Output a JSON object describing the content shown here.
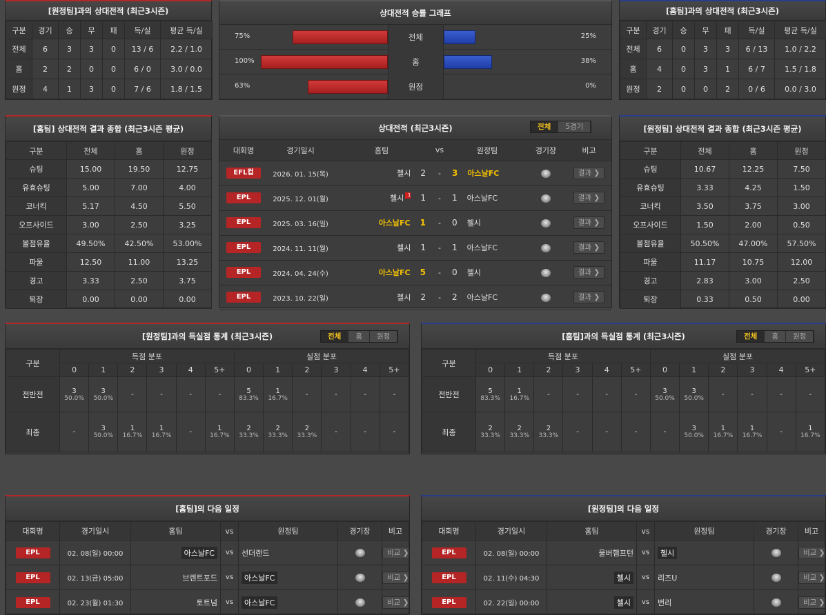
{
  "h2h_away": {
    "title": "[원정팀]과의 상대전적 (최근3시즌)",
    "headers": [
      "구분",
      "경기",
      "승",
      "무",
      "패",
      "득/실",
      "평균 득/실"
    ],
    "rows": [
      [
        "전체",
        "6",
        "3",
        "3",
        "0",
        "13 / 6",
        "2.2 / 1.0"
      ],
      [
        "홈",
        "2",
        "2",
        "0",
        "0",
        "6 / 0",
        "3.0 / 0.0"
      ],
      [
        "원정",
        "4",
        "1",
        "3",
        "0",
        "7 / 6",
        "1.8 / 1.5"
      ]
    ]
  },
  "graph": {
    "title": "상대전적 승률 그래프",
    "rows": [
      {
        "label": "전체",
        "left_pct": "75%",
        "right_pct": "25%",
        "left": 75,
        "right": 25
      },
      {
        "label": "홈",
        "left_pct": "100%",
        "right_pct": "38%",
        "left": 100,
        "right": 38
      },
      {
        "label": "원정",
        "left_pct": "63%",
        "right_pct": "0%",
        "left": 63,
        "right": 0
      }
    ]
  },
  "h2h_home": {
    "title": "[홈팀]과의 상대전적 (최근3시즌)",
    "headers": [
      "구분",
      "경기",
      "승",
      "무",
      "패",
      "득/실",
      "평균 득/실"
    ],
    "rows": [
      [
        "전체",
        "6",
        "0",
        "3",
        "3",
        "6 / 13",
        "1.0 / 2.2"
      ],
      [
        "홈",
        "4",
        "0",
        "3",
        "1",
        "6 / 7",
        "1.5 / 1.8"
      ],
      [
        "원정",
        "2",
        "0",
        "0",
        "2",
        "0 / 6",
        "0.0 / 3.0"
      ]
    ]
  },
  "summary_home": {
    "title": "[홈팀] 상대전적 결과 종합 (최근3시즌 평균)",
    "headers": [
      "구분",
      "전체",
      "홈",
      "원정"
    ],
    "rows": [
      [
        "슈팅",
        "15.00",
        "19.50",
        "12.75"
      ],
      [
        "유효슈팅",
        "5.00",
        "7.00",
        "4.00"
      ],
      [
        "코너킥",
        "5.17",
        "4.50",
        "5.50"
      ],
      [
        "오프사이드",
        "3.00",
        "2.50",
        "3.25"
      ],
      [
        "볼점유율",
        "49.50%",
        "42.50%",
        "53.00%"
      ],
      [
        "파울",
        "12.50",
        "11.00",
        "13.25"
      ],
      [
        "경고",
        "3.33",
        "2.50",
        "3.75"
      ],
      [
        "퇴장",
        "0.00",
        "0.00",
        "0.00"
      ]
    ]
  },
  "summary_away": {
    "title": "[원정팀] 상대전적 결과 종합 (최근3시즌 평균)",
    "headers": [
      "구분",
      "전체",
      "홈",
      "원정"
    ],
    "rows": [
      [
        "슈팅",
        "10.67",
        "12.25",
        "7.50"
      ],
      [
        "유효슈팅",
        "3.33",
        "4.25",
        "1.50"
      ],
      [
        "코너킥",
        "3.50",
        "3.75",
        "3.00"
      ],
      [
        "오프사이드",
        "1.50",
        "2.00",
        "0.50"
      ],
      [
        "볼점유율",
        "50.50%",
        "47.00%",
        "57.50%"
      ],
      [
        "파울",
        "11.17",
        "10.75",
        "12.00"
      ],
      [
        "경고",
        "2.83",
        "3.00",
        "2.50"
      ],
      [
        "퇴장",
        "0.33",
        "0.50",
        "0.00"
      ]
    ]
  },
  "matches": {
    "title": "상대전적 (최근3시즌)",
    "tabs": [
      "전체",
      "5경기"
    ],
    "headers": [
      "대회명",
      "경기일시",
      "홈팀",
      "vs",
      "원정팀",
      "경기장",
      "비고"
    ],
    "button": "결과 ❯",
    "rows": [
      {
        "comp": "EFL컵",
        "date": "2026. 01. 15(목)",
        "home": "첼시",
        "hs": "2",
        "as": "3",
        "away": "아스날FC",
        "hgold": false,
        "agold": true,
        "rc": ""
      },
      {
        "comp": "EPL",
        "date": "2025. 12. 01(월)",
        "home": "첼시",
        "hs": "1",
        "as": "1",
        "away": "아스날FC",
        "hgold": false,
        "agold": false,
        "rc": "1"
      },
      {
        "comp": "EPL",
        "date": "2025. 03. 16(일)",
        "home": "아스날FC",
        "hs": "1",
        "as": "0",
        "away": "첼시",
        "hgold": true,
        "agold": false,
        "rc": ""
      },
      {
        "comp": "EPL",
        "date": "2024. 11. 11(월)",
        "home": "첼시",
        "hs": "1",
        "as": "1",
        "away": "아스날FC",
        "hgold": false,
        "agold": false,
        "rc": ""
      },
      {
        "comp": "EPL",
        "date": "2024. 04. 24(수)",
        "home": "아스날FC",
        "hs": "5",
        "as": "0",
        "away": "첼시",
        "hgold": true,
        "agold": false,
        "rc": ""
      },
      {
        "comp": "EPL",
        "date": "2023. 10. 22(일)",
        "home": "첼시",
        "hs": "2",
        "as": "2",
        "away": "아스날FC",
        "hgold": false,
        "agold": false,
        "rc": ""
      }
    ]
  },
  "goals_left": {
    "title": "[원정팀]과의 득실점 통계 (최근3시즌)",
    "tabs": [
      "전체",
      "홈",
      "원정"
    ],
    "col_group": "구분",
    "scored": "득점 분포",
    "conceded": "실점 분포",
    "buckets": [
      "0",
      "1",
      "2",
      "3",
      "4",
      "5+"
    ],
    "rows": [
      {
        "label": "전반전",
        "cells": [
          [
            "3",
            "50.0%"
          ],
          [
            "3",
            "50.0%"
          ],
          [
            "-",
            ""
          ],
          [
            "-",
            ""
          ],
          [
            "-",
            ""
          ],
          [
            "-",
            ""
          ],
          [
            "5",
            "83.3%"
          ],
          [
            "1",
            "16.7%"
          ],
          [
            "-",
            ""
          ],
          [
            "-",
            ""
          ],
          [
            "-",
            ""
          ],
          [
            "-",
            ""
          ]
        ]
      },
      {
        "label": "최종",
        "cells": [
          [
            "-",
            ""
          ],
          [
            "3",
            "50.0%"
          ],
          [
            "1",
            "16.7%"
          ],
          [
            "1",
            "16.7%"
          ],
          [
            "-",
            ""
          ],
          [
            "1",
            "16.7%"
          ],
          [
            "2",
            "33.3%"
          ],
          [
            "2",
            "33.3%"
          ],
          [
            "2",
            "33.3%"
          ],
          [
            "-",
            ""
          ],
          [
            "-",
            ""
          ],
          [
            "-",
            ""
          ]
        ]
      }
    ]
  },
  "goals_right": {
    "title": "[홈팀]과의 득실점 통계 (최근3시즌)",
    "tabs": [
      "전체",
      "홈",
      "원정"
    ],
    "col_group": "구분",
    "scored": "득점 분포",
    "conceded": "실점 분포",
    "buckets": [
      "0",
      "1",
      "2",
      "3",
      "4",
      "5+"
    ],
    "rows": [
      {
        "label": "전반전",
        "cells": [
          [
            "5",
            "83.3%"
          ],
          [
            "1",
            "16.7%"
          ],
          [
            "-",
            ""
          ],
          [
            "-",
            ""
          ],
          [
            "-",
            ""
          ],
          [
            "-",
            ""
          ],
          [
            "3",
            "50.0%"
          ],
          [
            "3",
            "50.0%"
          ],
          [
            "-",
            ""
          ],
          [
            "-",
            ""
          ],
          [
            "-",
            ""
          ],
          [
            "-",
            ""
          ]
        ]
      },
      {
        "label": "최종",
        "cells": [
          [
            "2",
            "33.3%"
          ],
          [
            "2",
            "33.3%"
          ],
          [
            "2",
            "33.3%"
          ],
          [
            "-",
            ""
          ],
          [
            "-",
            ""
          ],
          [
            "-",
            ""
          ],
          [
            "-",
            ""
          ],
          [
            "3",
            "50.0%"
          ],
          [
            "1",
            "16.7%"
          ],
          [
            "1",
            "16.7%"
          ],
          [
            "-",
            ""
          ],
          [
            "1",
            "16.7%"
          ]
        ]
      }
    ]
  },
  "next_home": {
    "title": "[홈팀]의 다음 일정",
    "headers": [
      "대회명",
      "경기일시",
      "홈팀",
      "vs",
      "원정팀",
      "경기장",
      "비고"
    ],
    "button": "비교 ❯",
    "rows": [
      {
        "comp": "EPL",
        "date": "02. 08(일) 00:00",
        "home": "아스날FC",
        "away": "선더랜드",
        "boxed": "home"
      },
      {
        "comp": "EPL",
        "date": "02. 13(금) 05:00",
        "home": "브렌트포드",
        "away": "아스날FC",
        "boxed": "away"
      },
      {
        "comp": "EPL",
        "date": "02. 23(월) 01:30",
        "home": "토트넘",
        "away": "아스날FC",
        "boxed": "away"
      }
    ]
  },
  "next_away": {
    "title": "[원정팀]의 다음 일정",
    "headers": [
      "대회명",
      "경기일시",
      "홈팀",
      "vs",
      "원정팀",
      "경기장",
      "비고"
    ],
    "button": "비교 ❯",
    "rows": [
      {
        "comp": "EPL",
        "date": "02. 08(일) 00:00",
        "home": "울버햄프턴",
        "away": "첼시",
        "boxed": "away"
      },
      {
        "comp": "EPL",
        "date": "02. 11(수) 04:30",
        "home": "첼시",
        "away": "리즈U",
        "boxed": "home"
      },
      {
        "comp": "EPL",
        "date": "02. 22(일) 00:00",
        "home": "첼시",
        "away": "번리",
        "boxed": "home"
      }
    ]
  }
}
